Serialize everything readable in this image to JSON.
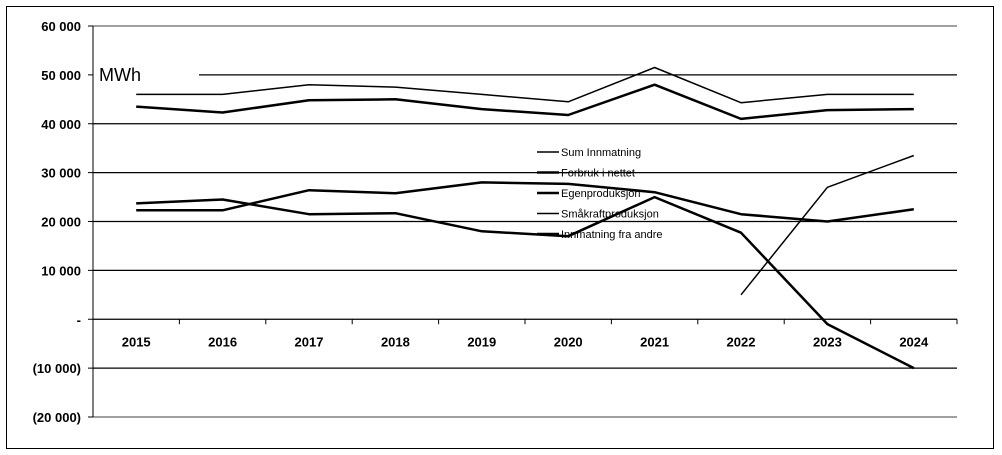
{
  "chart_data": {
    "type": "line",
    "title": "",
    "unit_label": "MWh",
    "xlabel": "",
    "ylabel": "",
    "categories": [
      "2015",
      "2016",
      "2017",
      "2018",
      "2019",
      "2020",
      "2021",
      "2022",
      "2023",
      "2024"
    ],
    "ylim": [
      -20000,
      60000
    ],
    "y_ticks": [
      {
        "value": 60000,
        "label": "60 000"
      },
      {
        "value": 50000,
        "label": "50 000"
      },
      {
        "value": 40000,
        "label": "40 000"
      },
      {
        "value": 30000,
        "label": "30 000"
      },
      {
        "value": 20000,
        "label": "20 000"
      },
      {
        "value": 10000,
        "label": "10 000"
      },
      {
        "value": 0,
        "label": "-"
      },
      {
        "value": -10000,
        "label": "(10 000)"
      },
      {
        "value": -20000,
        "label": "(20 000)"
      }
    ],
    "grid": true,
    "legend_position": "center",
    "line_color": "#000000",
    "series": [
      {
        "name": "Sum Innmatning",
        "values": [
          46000,
          46000,
          48000,
          47500,
          46000,
          44500,
          51500,
          44300,
          46000,
          46000
        ],
        "stroke_width": 1.5
      },
      {
        "name": "Forbruk i nettet",
        "values": [
          43500,
          42300,
          44800,
          45000,
          43000,
          41800,
          48000,
          41000,
          42800,
          43000
        ],
        "stroke_width": 2.5
      },
      {
        "name": "Egenproduksjon",
        "values": [
          22300,
          22300,
          26400,
          25800,
          28000,
          27700,
          26000,
          21500,
          20000,
          22500
        ],
        "stroke_width": 2.5
      },
      {
        "name": "Småkraftproduksjon",
        "values": [
          null,
          null,
          null,
          null,
          null,
          null,
          null,
          5000,
          27000,
          33500
        ],
        "stroke_width": 1.5
      },
      {
        "name": "Innmatning fra andre",
        "values": [
          23700,
          24500,
          21500,
          21700,
          18000,
          17000,
          25000,
          17700,
          -1000,
          -10000
        ],
        "stroke_width": 2.5
      }
    ]
  }
}
